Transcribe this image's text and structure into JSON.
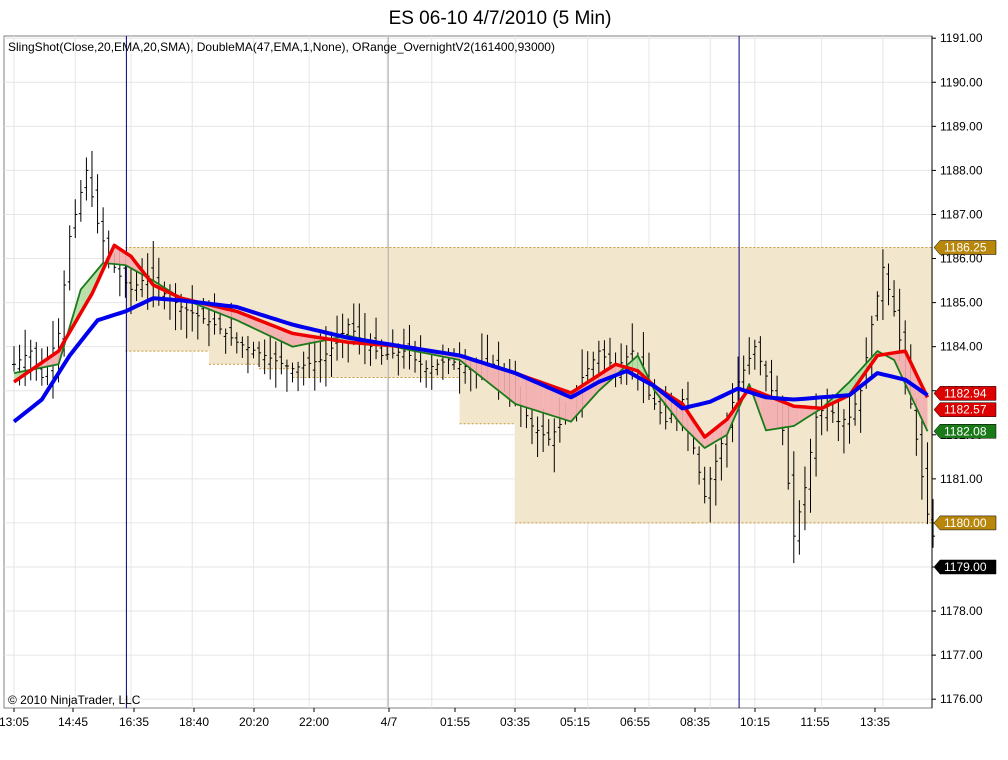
{
  "chart_data": {
    "type": "candlestick-ohlc",
    "title": "ES 06-10  4/7/2010 (5 Min)",
    "indicators": "SlingShot(Close,20,EMA,20,SMA),   DoubleMA(47,EMA,1,None),   ORange_OvernightV2(161400,93000)",
    "copyright": "© 2010 NinjaTrader, LLC",
    "y_ticks": [
      "1176.00",
      "1177.00",
      "1178.00",
      "1179.00",
      "1180.00",
      "1181.00",
      "1182.00",
      "1183.00",
      "1184.00",
      "1185.00",
      "1186.00",
      "1187.00",
      "1188.00",
      "1189.00",
      "1190.00",
      "1191.00"
    ],
    "ylim": [
      1175.8,
      1191.05
    ],
    "x_ticks": [
      "13:05",
      "14:45",
      "16:35",
      "18:40",
      "20:20",
      "22:00",
      "4/7",
      "01:55",
      "03:35",
      "05:15",
      "06:55",
      "08:35",
      "10:15",
      "11:55",
      "13:35"
    ],
    "overnight_range": {
      "high": 1186.25,
      "low_levels": [
        1184.5,
        1183.5,
        1182.25,
        1180.0
      ],
      "high_label": "1186.25",
      "low_label": "1180.00"
    },
    "price_labels": [
      {
        "text": "1186.25",
        "value": 1186.25,
        "color": "#b8860b"
      },
      {
        "text": "1182.94",
        "value": 1182.94,
        "color": "#dd0000"
      },
      {
        "text": "1182.57",
        "value": 1182.57,
        "color": "#dd0000"
      },
      {
        "text": "1182.08",
        "value": 1182.08,
        "color": "#1a7a1a"
      },
      {
        "text": "1180.00",
        "value": 1180.0,
        "color": "#b8860b"
      },
      {
        "text": "1179.00",
        "value": 1179.0,
        "color": "#000000"
      }
    ],
    "close_path": [
      [
        0,
        1183.6
      ],
      [
        3,
        1183.9
      ],
      [
        5,
        1183.3
      ],
      [
        8,
        1184.3
      ],
      [
        10,
        1186.5
      ],
      [
        12,
        1187.5
      ],
      [
        13,
        1188.0
      ],
      [
        15,
        1186.8
      ],
      [
        17,
        1186.0
      ],
      [
        19,
        1185.6
      ],
      [
        21,
        1185.3
      ],
      [
        24,
        1185.6
      ],
      [
        27,
        1185.2
      ],
      [
        30,
        1184.9
      ],
      [
        33,
        1184.7
      ],
      [
        36,
        1184.5
      ],
      [
        40,
        1184.1
      ],
      [
        45,
        1183.8
      ],
      [
        50,
        1183.5
      ],
      [
        55,
        1183.7
      ],
      [
        58,
        1184.1
      ],
      [
        60,
        1184.5
      ],
      [
        62,
        1184.2
      ],
      [
        66,
        1183.8
      ],
      [
        70,
        1183.9
      ],
      [
        74,
        1183.5
      ],
      [
        78,
        1183.7
      ],
      [
        82,
        1183.5
      ],
      [
        86,
        1183.6
      ],
      [
        90,
        1182.9
      ],
      [
        93,
        1182.2
      ],
      [
        96,
        1181.9
      ],
      [
        99,
        1182.4
      ],
      [
        102,
        1183.3
      ],
      [
        105,
        1183.9
      ],
      [
        108,
        1183.5
      ],
      [
        111,
        1183.9
      ],
      [
        114,
        1182.9
      ],
      [
        117,
        1182.3
      ],
      [
        120,
        1182.8
      ],
      [
        124,
        1180.6
      ],
      [
        127,
        1181.8
      ],
      [
        130,
        1183.2
      ],
      [
        133,
        1184.0
      ],
      [
        136,
        1183.0
      ],
      [
        138,
        1182.1
      ],
      [
        140,
        1179.7
      ],
      [
        142,
        1180.8
      ],
      [
        144,
        1182.4
      ],
      [
        146,
        1182.7
      ],
      [
        148,
        1182.3
      ],
      [
        150,
        1182.4
      ],
      [
        152,
        1183.0
      ],
      [
        154,
        1184.5
      ],
      [
        156,
        1185.8
      ],
      [
        158,
        1184.8
      ],
      [
        160,
        1183.5
      ],
      [
        162,
        1181.9
      ],
      [
        164,
        1180.2
      ],
      [
        166,
        1179.2
      ]
    ],
    "series": [
      {
        "name": "blue",
        "color": "#0000ee",
        "values": [
          [
            0,
            1182.3
          ],
          [
            5,
            1182.8
          ],
          [
            10,
            1183.8
          ],
          [
            15,
            1184.6
          ],
          [
            20,
            1184.8
          ],
          [
            25,
            1185.1
          ],
          [
            30,
            1185.05
          ],
          [
            40,
            1184.9
          ],
          [
            50,
            1184.5
          ],
          [
            60,
            1184.2
          ],
          [
            70,
            1184.0
          ],
          [
            80,
            1183.8
          ],
          [
            90,
            1183.4
          ],
          [
            100,
            1182.85
          ],
          [
            105,
            1183.2
          ],
          [
            110,
            1183.45
          ],
          [
            115,
            1183.1
          ],
          [
            120,
            1182.6
          ],
          [
            125,
            1182.75
          ],
          [
            130,
            1183.05
          ],
          [
            135,
            1182.85
          ],
          [
            140,
            1182.8
          ],
          [
            145,
            1182.85
          ],
          [
            150,
            1182.9
          ],
          [
            155,
            1183.4
          ],
          [
            160,
            1183.25
          ],
          [
            164,
            1182.9
          ]
        ]
      },
      {
        "name": "red",
        "color": "#ee0000",
        "values": [
          [
            0,
            1183.2
          ],
          [
            8,
            1183.9
          ],
          [
            14,
            1185.2
          ],
          [
            18,
            1186.3
          ],
          [
            21,
            1186.05
          ],
          [
            25,
            1185.4
          ],
          [
            30,
            1185.1
          ],
          [
            40,
            1184.8
          ],
          [
            50,
            1184.3
          ],
          [
            60,
            1184.1
          ],
          [
            70,
            1184.0
          ],
          [
            80,
            1183.8
          ],
          [
            90,
            1183.4
          ],
          [
            100,
            1182.95
          ],
          [
            108,
            1183.6
          ],
          [
            112,
            1183.45
          ],
          [
            115,
            1183.1
          ],
          [
            120,
            1182.7
          ],
          [
            124,
            1181.95
          ],
          [
            128,
            1182.35
          ],
          [
            132,
            1183.05
          ],
          [
            135,
            1182.9
          ],
          [
            140,
            1182.65
          ],
          [
            145,
            1182.6
          ],
          [
            150,
            1182.9
          ],
          [
            155,
            1183.8
          ],
          [
            160,
            1183.9
          ],
          [
            164,
            1182.85
          ]
        ]
      },
      {
        "name": "green",
        "color": "#1a7a1a",
        "values": [
          [
            0,
            1183.4
          ],
          [
            8,
            1183.6
          ],
          [
            12,
            1185.3
          ],
          [
            16,
            1185.9
          ],
          [
            20,
            1185.85
          ],
          [
            25,
            1185.5
          ],
          [
            30,
            1185.1
          ],
          [
            40,
            1184.6
          ],
          [
            50,
            1184.0
          ],
          [
            60,
            1184.25
          ],
          [
            70,
            1183.95
          ],
          [
            80,
            1183.7
          ],
          [
            90,
            1182.7
          ],
          [
            100,
            1182.3
          ],
          [
            105,
            1183.0
          ],
          [
            112,
            1183.8
          ],
          [
            115,
            1183.0
          ],
          [
            120,
            1182.2
          ],
          [
            124,
            1181.7
          ],
          [
            128,
            1182.0
          ],
          [
            132,
            1183.15
          ],
          [
            135,
            1182.1
          ],
          [
            140,
            1182.2
          ],
          [
            145,
            1182.6
          ],
          [
            150,
            1183.2
          ],
          [
            155,
            1183.9
          ],
          [
            158,
            1183.7
          ],
          [
            164,
            1182.08
          ]
        ]
      }
    ],
    "vertical_markers": [
      {
        "bar": 20,
        "color": "#000080"
      },
      {
        "bar": 67,
        "color": "#aaaaaa"
      },
      {
        "bar": 130,
        "color": "#000080"
      }
    ]
  }
}
